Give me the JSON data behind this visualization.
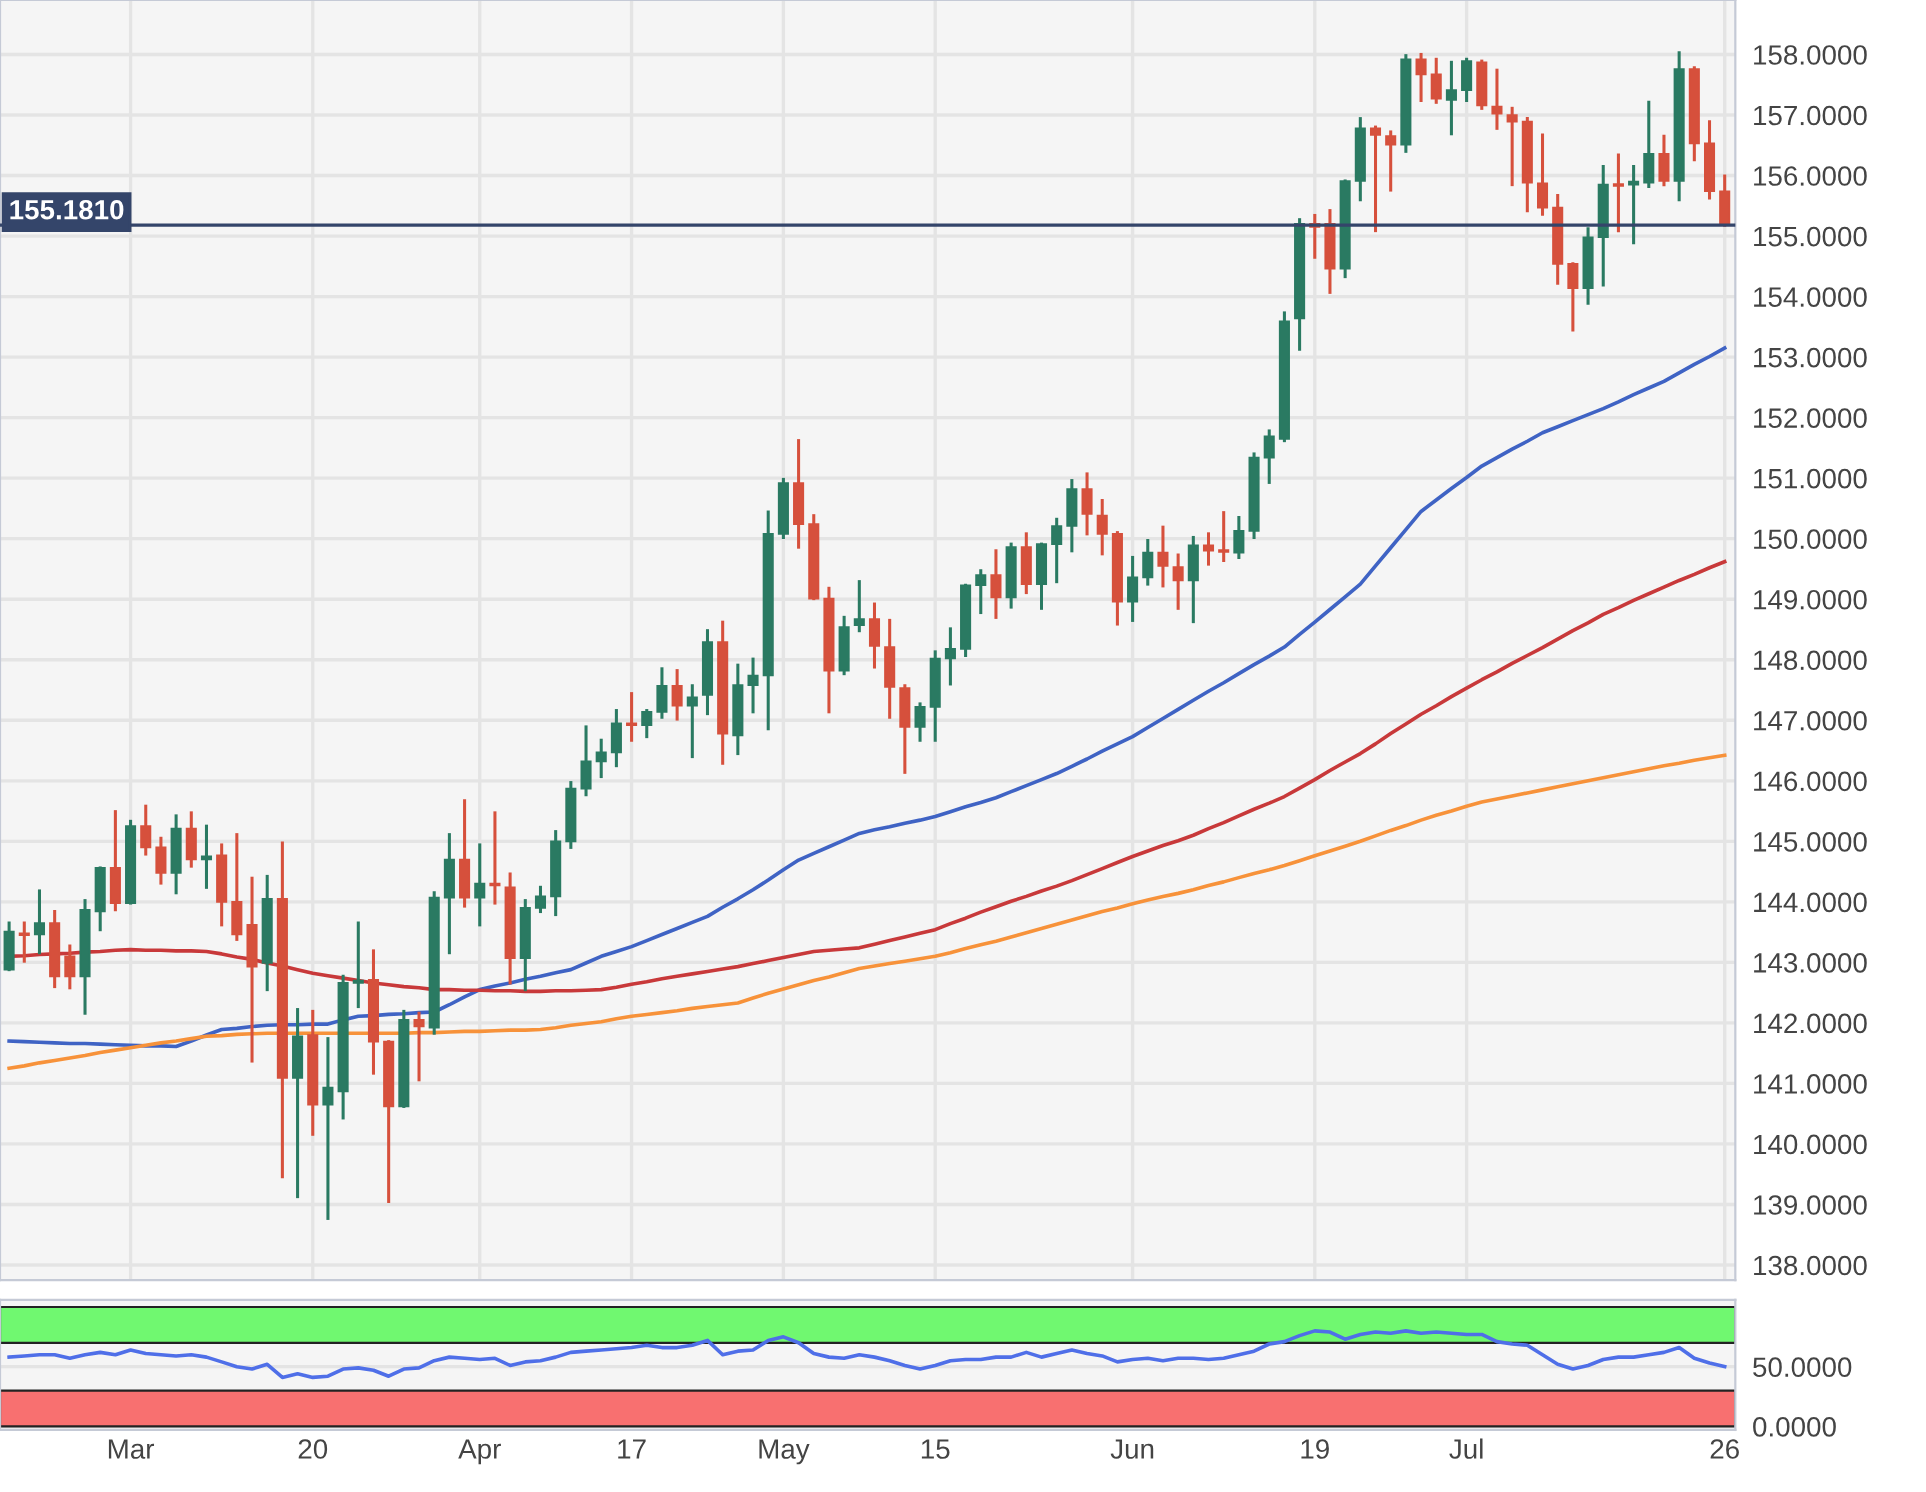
{
  "chart_data": [
    {
      "type": "candlestick",
      "categories": [
        null,
        null,
        null,
        null,
        null,
        null,
        null,
        null,
        "Mar",
        null,
        null,
        null,
        null,
        null,
        null,
        null,
        null,
        null,
        null,
        null,
        "20",
        null,
        null,
        null,
        null,
        null,
        null,
        null,
        null,
        null,
        null,
        "Apr",
        null,
        null,
        null,
        null,
        null,
        null,
        null,
        null,
        null,
        "17",
        null,
        null,
        null,
        null,
        null,
        null,
        null,
        null,
        null,
        "May",
        null,
        null,
        null,
        null,
        null,
        null,
        null,
        null,
        null,
        "15",
        null,
        null,
        null,
        null,
        null,
        null,
        null,
        null,
        null,
        null,
        null,
        null,
        "Jun",
        null,
        null,
        null,
        null,
        null,
        null,
        null,
        null,
        null,
        null,
        null,
        "19",
        null,
        null,
        null,
        null,
        null,
        null,
        null,
        null,
        null,
        "Jul",
        null,
        null,
        null,
        null,
        null,
        null,
        null,
        null,
        null,
        null,
        null,
        null,
        null,
        null,
        null,
        null,
        "26"
      ],
      "ohlc": [
        [
          142.88,
          143.65,
          142.88,
          143.51
        ],
        [
          143.47,
          143.65,
          143.02,
          143.45
        ],
        [
          143.46,
          144.18,
          143.16,
          143.65
        ],
        [
          143.65,
          143.84,
          142.6,
          142.77
        ],
        [
          143.1,
          143.27,
          142.58,
          142.77
        ],
        [
          142.77,
          144.02,
          142.16,
          143.87
        ],
        [
          143.84,
          144.56,
          143.54,
          144.56
        ],
        [
          144.56,
          145.49,
          143.87,
          143.98
        ],
        [
          143.98,
          145.33,
          143.98,
          145.25
        ],
        [
          145.25,
          145.58,
          144.79,
          144.9
        ],
        [
          144.9,
          145.05,
          144.31,
          144.48
        ],
        [
          144.48,
          145.42,
          144.15,
          145.21
        ],
        [
          145.21,
          145.47,
          144.59,
          144.7
        ],
        [
          144.7,
          145.25,
          144.24,
          144.75
        ],
        [
          144.77,
          144.94,
          143.62,
          144.0
        ],
        [
          144.0,
          145.11,
          143.38,
          143.46
        ],
        [
          143.62,
          144.39,
          141.37,
          142.93
        ],
        [
          142.99,
          144.42,
          142.55,
          144.05
        ],
        [
          144.05,
          144.97,
          139.46,
          141.09
        ],
        [
          141.09,
          142.22,
          139.13,
          141.78
        ],
        [
          141.8,
          142.19,
          140.16,
          140.65
        ],
        [
          140.65,
          141.74,
          138.77,
          140.93
        ],
        [
          140.87,
          142.77,
          140.43,
          142.66
        ],
        [
          142.66,
          143.65,
          142.27,
          142.7
        ],
        [
          142.71,
          143.19,
          141.17,
          141.69
        ],
        [
          141.69,
          141.69,
          139.05,
          140.62
        ],
        [
          140.62,
          142.19,
          140.62,
          142.05
        ],
        [
          142.05,
          142.16,
          141.06,
          141.94
        ],
        [
          141.92,
          144.15,
          141.83,
          144.07
        ],
        [
          144.07,
          145.11,
          143.16,
          144.7
        ],
        [
          144.7,
          145.67,
          143.93,
          144.07
        ],
        [
          144.07,
          144.94,
          143.62,
          144.3
        ],
        [
          144.3,
          145.47,
          143.98,
          144.27
        ],
        [
          144.24,
          144.46,
          142.66,
          143.07
        ],
        [
          143.07,
          144.02,
          142.55,
          143.9
        ],
        [
          143.9,
          144.24,
          143.84,
          144.09
        ],
        [
          144.09,
          145.16,
          143.79,
          145.0
        ],
        [
          145.0,
          145.97,
          144.9,
          145.87
        ],
        [
          145.87,
          146.89,
          145.77,
          146.32
        ],
        [
          146.32,
          146.67,
          146.07,
          146.47
        ],
        [
          146.47,
          147.16,
          146.25,
          146.95
        ],
        [
          146.95,
          147.44,
          146.67,
          146.92
        ],
        [
          146.92,
          147.16,
          146.73,
          147.14
        ],
        [
          147.14,
          147.85,
          147.05,
          147.57
        ],
        [
          147.57,
          147.82,
          147.02,
          147.24
        ],
        [
          147.24,
          147.57,
          146.4,
          147.38
        ],
        [
          147.42,
          148.48,
          147.11,
          148.29
        ],
        [
          148.29,
          148.62,
          146.29,
          146.78
        ],
        [
          146.75,
          147.91,
          146.45,
          147.58
        ],
        [
          147.58,
          148.01,
          147.14,
          147.74
        ],
        [
          147.74,
          150.44,
          146.86,
          150.08
        ],
        [
          150.08,
          150.98,
          150.02,
          150.92
        ],
        [
          150.92,
          151.62,
          149.86,
          150.24
        ],
        [
          150.24,
          150.38,
          149.01,
          149.01
        ],
        [
          149.01,
          149.18,
          147.14,
          147.82
        ],
        [
          147.82,
          148.7,
          147.77,
          148.54
        ],
        [
          148.57,
          149.29,
          148.48,
          148.67
        ],
        [
          148.67,
          148.92,
          147.88,
          148.23
        ],
        [
          148.21,
          148.65,
          147.05,
          147.55
        ],
        [
          147.53,
          147.57,
          146.14,
          146.89
        ],
        [
          146.89,
          147.27,
          146.67,
          147.22
        ],
        [
          147.22,
          148.13,
          146.67,
          148.02
        ],
        [
          148.02,
          148.51,
          147.6,
          148.18
        ],
        [
          148.18,
          149.23,
          148.07,
          149.23
        ],
        [
          149.23,
          149.47,
          148.78,
          149.4
        ],
        [
          149.4,
          149.8,
          148.7,
          149.03
        ],
        [
          149.03,
          149.91,
          148.87,
          149.86
        ],
        [
          149.86,
          150.08,
          149.11,
          149.25
        ],
        [
          149.25,
          149.91,
          148.85,
          149.91
        ],
        [
          149.91,
          150.32,
          149.29,
          150.21
        ],
        [
          150.21,
          150.96,
          149.8,
          150.82
        ],
        [
          150.82,
          151.07,
          150.08,
          150.41
        ],
        [
          150.38,
          150.63,
          149.75,
          150.08
        ],
        [
          150.08,
          150.1,
          148.59,
          148.96
        ],
        [
          148.96,
          149.69,
          148.65,
          149.36
        ],
        [
          149.36,
          149.97,
          149.25,
          149.77
        ],
        [
          149.77,
          150.19,
          149.22,
          149.55
        ],
        [
          149.53,
          149.73,
          148.85,
          149.31
        ],
        [
          149.31,
          150.02,
          148.63,
          149.89
        ],
        [
          149.89,
          150.08,
          149.58,
          149.8
        ],
        [
          149.8,
          150.43,
          149.64,
          149.78
        ],
        [
          149.77,
          150.35,
          149.69,
          150.13
        ],
        [
          150.13,
          151.4,
          150.02,
          151.34
        ],
        [
          151.34,
          151.78,
          150.93,
          151.69
        ],
        [
          151.65,
          153.73,
          151.62,
          153.59
        ],
        [
          153.64,
          155.27,
          153.13,
          155.2
        ],
        [
          155.2,
          155.34,
          154.65,
          155.15
        ],
        [
          155.2,
          155.42,
          154.07,
          154.46
        ],
        [
          154.46,
          155.91,
          154.33,
          155.91
        ],
        [
          155.91,
          156.94,
          155.6,
          156.78
        ],
        [
          156.78,
          156.8,
          155.09,
          156.67
        ],
        [
          156.65,
          156.72,
          155.76,
          156.51
        ],
        [
          156.51,
          157.98,
          156.4,
          157.92
        ],
        [
          157.92,
          158.0,
          157.24,
          157.67
        ],
        [
          157.67,
          157.92,
          157.21,
          157.27
        ],
        [
          157.25,
          157.87,
          156.69,
          157.41
        ],
        [
          157.41,
          157.92,
          157.24,
          157.89
        ],
        [
          157.87,
          157.89,
          157.11,
          157.16
        ],
        [
          157.14,
          157.74,
          156.78,
          157.02
        ],
        [
          157.0,
          157.11,
          155.85,
          156.89
        ],
        [
          156.89,
          156.94,
          155.42,
          155.88
        ],
        [
          155.87,
          156.67,
          155.36,
          155.47
        ],
        [
          155.47,
          155.67,
          154.22,
          154.54
        ],
        [
          154.54,
          154.54,
          153.45,
          154.14
        ],
        [
          154.14,
          155.12,
          153.89,
          154.98
        ],
        [
          154.98,
          156.15,
          154.19,
          155.85
        ],
        [
          155.86,
          156.34,
          155.09,
          155.83
        ],
        [
          155.85,
          156.15,
          154.89,
          155.9
        ],
        [
          155.88,
          157.21,
          155.82,
          156.36
        ],
        [
          156.36,
          156.65,
          155.85,
          155.91
        ],
        [
          155.91,
          158.03,
          155.6,
          157.76
        ],
        [
          157.76,
          157.78,
          156.26,
          156.53
        ],
        [
          156.53,
          156.89,
          155.63,
          155.74
        ],
        [
          155.74,
          155.99,
          155.18,
          155.181
        ]
      ],
      "colors": [
        "#2a7a62",
        "#d6503c",
        "#2a7a62",
        "#d6503c",
        "#d6503c",
        "#2a7a62",
        "#2a7a62",
        "#d6503c",
        "#2a7a62",
        "#d6503c",
        "#d6503c",
        "#2a7a62",
        "#d6503c",
        "#2a7a62",
        "#d6503c",
        "#d6503c",
        "#d6503c",
        "#2a7a62",
        "#d6503c",
        "#2a7a62",
        "#d6503c",
        "#2a7a62",
        "#2a7a62",
        "#2a7a62",
        "#d6503c",
        "#d6503c",
        "#2a7a62",
        "#d6503c",
        "#2a7a62",
        "#2a7a62",
        "#d6503c",
        "#2a7a62",
        "#d6503c",
        "#d6503c",
        "#2a7a62",
        "#2a7a62",
        "#2a7a62",
        "#2a7a62",
        "#2a7a62",
        "#2a7a62",
        "#2a7a62",
        "#d6503c",
        "#2a7a62",
        "#2a7a62",
        "#d6503c",
        "#2a7a62",
        "#2a7a62",
        "#d6503c",
        "#2a7a62",
        "#2a7a62",
        "#2a7a62",
        "#2a7a62",
        "#d6503c",
        "#d6503c",
        "#d6503c",
        "#2a7a62",
        "#2a7a62",
        "#d6503c",
        "#d6503c",
        "#d6503c",
        "#2a7a62",
        "#2a7a62",
        "#2a7a62",
        "#2a7a62",
        "#2a7a62",
        "#d6503c",
        "#2a7a62",
        "#d6503c",
        "#2a7a62",
        "#2a7a62",
        "#2a7a62",
        "#d6503c",
        "#d6503c",
        "#d6503c",
        "#2a7a62",
        "#2a7a62",
        "#d6503c",
        "#d6503c",
        "#2a7a62",
        "#d6503c",
        "#d6503c",
        "#2a7a62",
        "#2a7a62",
        "#2a7a62",
        "#2a7a62",
        "#2a7a62",
        "#d6503c",
        "#d6503c",
        "#2a7a62",
        "#2a7a62",
        "#d6503c",
        "#d6503c",
        "#2a7a62",
        "#d6503c",
        "#d6503c",
        "#2a7a62",
        "#2a7a62",
        "#d6503c",
        "#d6503c",
        "#d6503c",
        "#d6503c",
        "#d6503c",
        "#d6503c",
        "#d6503c",
        "#2a7a62",
        "#2a7a62",
        "#d6503c",
        "#2a7a62",
        "#2a7a62",
        "#d6503c",
        "#2a7a62",
        "#d6503c",
        "#d6503c",
        "#d6503c"
      ],
      "series": [
        {
          "type": "line",
          "color": "#3f63c4",
          "values": [
            141.7,
            141.69,
            141.68,
            141.67,
            141.66,
            141.66,
            141.65,
            141.64,
            141.63,
            141.62,
            141.62,
            141.61,
            141.7,
            141.8,
            141.89,
            141.91,
            141.94,
            141.96,
            141.97,
            141.97,
            141.98,
            141.98,
            142.05,
            142.11,
            142.12,
            142.14,
            142.15,
            142.17,
            142.18,
            142.3,
            142.43,
            142.55,
            142.61,
            142.66,
            142.72,
            142.77,
            142.83,
            142.88,
            142.99,
            143.1,
            143.18,
            143.26,
            143.36,
            143.46,
            143.56,
            143.66,
            143.76,
            143.91,
            144.05,
            144.2,
            144.36,
            144.53,
            144.69,
            144.8,
            144.91,
            145.02,
            145.13,
            145.19,
            145.24,
            145.3,
            145.35,
            145.41,
            145.49,
            145.57,
            145.64,
            145.72,
            145.82,
            145.92,
            146.02,
            146.12,
            146.24,
            146.36,
            146.49,
            146.61,
            146.73,
            146.88,
            147.03,
            147.18,
            147.33,
            147.48,
            147.62,
            147.77,
            147.92,
            148.06,
            148.21,
            148.42,
            148.62,
            148.83,
            149.04,
            149.25,
            149.55,
            149.85,
            150.15,
            150.45,
            150.64,
            150.83,
            151.01,
            151.2,
            151.34,
            151.48,
            151.61,
            151.75,
            151.85,
            151.95,
            152.05,
            152.15,
            152.26,
            152.38,
            152.49,
            152.6,
            152.74,
            152.88,
            153.01,
            153.15
          ]
        },
        {
          "type": "line",
          "color": "#c8393a",
          "values": [
            143.1,
            143.11,
            143.13,
            143.14,
            143.15,
            143.17,
            143.18,
            143.2,
            143.21,
            143.2,
            143.2,
            143.19,
            143.19,
            143.18,
            143.14,
            143.09,
            143.05,
            142.99,
            142.94,
            142.88,
            142.82,
            142.78,
            142.74,
            142.7,
            142.66,
            142.63,
            142.6,
            142.58,
            142.55,
            142.55,
            142.54,
            142.54,
            142.53,
            142.53,
            142.52,
            142.52,
            142.53,
            142.53,
            142.54,
            142.55,
            142.59,
            142.64,
            142.68,
            142.73,
            142.77,
            142.81,
            142.85,
            142.89,
            142.93,
            142.98,
            143.03,
            143.08,
            143.13,
            143.18,
            143.2,
            143.22,
            143.24,
            143.3,
            143.36,
            143.42,
            143.48,
            143.54,
            143.64,
            143.73,
            143.83,
            143.92,
            144.01,
            144.09,
            144.18,
            144.26,
            144.35,
            144.45,
            144.55,
            144.65,
            144.75,
            144.84,
            144.93,
            145.01,
            145.1,
            145.21,
            145.31,
            145.42,
            145.53,
            145.63,
            145.74,
            145.88,
            146.02,
            146.17,
            146.31,
            146.45,
            146.61,
            146.78,
            146.94,
            147.1,
            147.24,
            147.39,
            147.53,
            147.67,
            147.8,
            147.94,
            148.07,
            148.2,
            148.34,
            148.48,
            148.61,
            148.75,
            148.86,
            148.98,
            149.09,
            149.2,
            149.31,
            149.41,
            149.52,
            149.62
          ]
        },
        {
          "type": "line",
          "color": "#f7923a",
          "values": [
            141.25,
            141.29,
            141.34,
            141.38,
            141.42,
            141.46,
            141.51,
            141.55,
            141.59,
            141.63,
            141.67,
            141.7,
            141.74,
            141.78,
            141.79,
            141.81,
            141.82,
            141.83,
            141.83,
            141.83,
            141.83,
            141.83,
            141.83,
            141.83,
            141.83,
            141.83,
            141.83,
            141.84,
            141.84,
            141.85,
            141.86,
            141.86,
            141.87,
            141.88,
            141.88,
            141.89,
            141.92,
            141.96,
            141.99,
            142.02,
            142.07,
            142.11,
            142.14,
            142.17,
            142.2,
            142.24,
            142.27,
            142.3,
            142.33,
            142.41,
            142.49,
            142.56,
            142.63,
            142.7,
            142.76,
            142.83,
            142.9,
            142.94,
            142.98,
            143.02,
            143.06,
            143.1,
            143.16,
            143.23,
            143.29,
            143.35,
            143.42,
            143.49,
            143.56,
            143.63,
            143.7,
            143.77,
            143.84,
            143.9,
            143.97,
            144.03,
            144.09,
            144.14,
            144.2,
            144.27,
            144.33,
            144.4,
            144.47,
            144.53,
            144.6,
            144.68,
            144.76,
            144.84,
            144.92,
            145.0,
            145.09,
            145.18,
            145.26,
            145.35,
            145.43,
            145.5,
            145.58,
            145.65,
            145.7,
            145.75,
            145.8,
            145.85,
            145.9,
            145.95,
            146.0,
            146.05,
            146.1,
            146.15,
            146.2,
            146.25,
            146.29,
            146.34,
            146.38,
            146.42
          ]
        }
      ],
      "ylim": [
        137.75,
        158.9
      ],
      "yticks": [
        {
          "value": 138,
          "label": "138.0000"
        },
        {
          "value": 139,
          "label": "139.0000"
        },
        {
          "value": 140,
          "label": "140.0000"
        },
        {
          "value": 141,
          "label": "141.0000"
        },
        {
          "value": 142,
          "label": "142.0000"
        },
        {
          "value": 143,
          "label": "143.0000"
        },
        {
          "value": 144,
          "label": "144.0000"
        },
        {
          "value": 145,
          "label": "145.0000"
        },
        {
          "value": 146,
          "label": "146.0000"
        },
        {
          "value": 147,
          "label": "147.0000"
        },
        {
          "value": 148,
          "label": "148.0000"
        },
        {
          "value": 149,
          "label": "149.0000"
        },
        {
          "value": 150,
          "label": "150.0000"
        },
        {
          "value": 151,
          "label": "151.0000"
        },
        {
          "value": 152,
          "label": "152.0000"
        },
        {
          "value": 153,
          "label": "153.0000"
        },
        {
          "value": 154,
          "label": "154.0000"
        },
        {
          "value": 155,
          "label": "155.0000"
        },
        {
          "value": 156,
          "label": "156.0000"
        },
        {
          "value": 157,
          "label": "157.0000"
        },
        {
          "value": 158,
          "label": "158.0000"
        }
      ],
      "ref_lines": [
        {
          "axis": "y",
          "value": 155.181,
          "label": "155.1810",
          "color": "#34456a"
        }
      ],
      "grid": true
    },
    {
      "type": "line",
      "categories": [
        null,
        null,
        null,
        null,
        null,
        null,
        null,
        null,
        null,
        null,
        null,
        null,
        null,
        null,
        null,
        null,
        null,
        null,
        null,
        null,
        null,
        null,
        null,
        null,
        null,
        null,
        null,
        null,
        null,
        null,
        null,
        null,
        null,
        null,
        null,
        null,
        null,
        null,
        null,
        null,
        null,
        null,
        null,
        null,
        null,
        null,
        null,
        null,
        null,
        null,
        null,
        null,
        null,
        null,
        null,
        null,
        null,
        null,
        null,
        null,
        null,
        null,
        null,
        null,
        null,
        null,
        null,
        null,
        null,
        null,
        null,
        null,
        null,
        null,
        null,
        null,
        null,
        null,
        null,
        null,
        null,
        null,
        null,
        null,
        null,
        null,
        null,
        null,
        null,
        null,
        null,
        null,
        null,
        null,
        null,
        null,
        null,
        null,
        null,
        null,
        null,
        null,
        null,
        null,
        null,
        null,
        null,
        null,
        null,
        null,
        null,
        null,
        null,
        null
      ],
      "tick_labels": "y",
      "series": [
        {
          "color": "#4f6fe8",
          "values": [
            58,
            59,
            60,
            60,
            57,
            60,
            62,
            60,
            64,
            61,
            60,
            59,
            60,
            58,
            54,
            50,
            48,
            52,
            41,
            44,
            41,
            42,
            48,
            49,
            47,
            42,
            48,
            49,
            55,
            58,
            57,
            56,
            57,
            51,
            54,
            55,
            58,
            62,
            63,
            64,
            65,
            66,
            68,
            66,
            66,
            68,
            72,
            60,
            63,
            64,
            72,
            75,
            70,
            61,
            58,
            57,
            60,
            58,
            55,
            51,
            48,
            51,
            55,
            56,
            56,
            58,
            58,
            62,
            58,
            61,
            64,
            61,
            59,
            54,
            56,
            57,
            55,
            57,
            57,
            56,
            57,
            60,
            63,
            69,
            71,
            76,
            80,
            79,
            73,
            77,
            79,
            78,
            80,
            78,
            79,
            78,
            77,
            77,
            71,
            69,
            68,
            60,
            52,
            48,
            51,
            56,
            58,
            58,
            60,
            62,
            66,
            57,
            53,
            50
          ]
        }
      ],
      "bands": [
        {
          "axis": "y",
          "from": 70,
          "to": 100,
          "color": "#70f870"
        },
        {
          "axis": "y",
          "from": 0,
          "to": 30,
          "color": "#f87070"
        }
      ],
      "ylim": [
        -3,
        106
      ],
      "yticks": [
        {
          "value": 0,
          "label": "0.0000"
        },
        {
          "value": 50,
          "label": "50.0000"
        }
      ],
      "grid": "y"
    }
  ]
}
